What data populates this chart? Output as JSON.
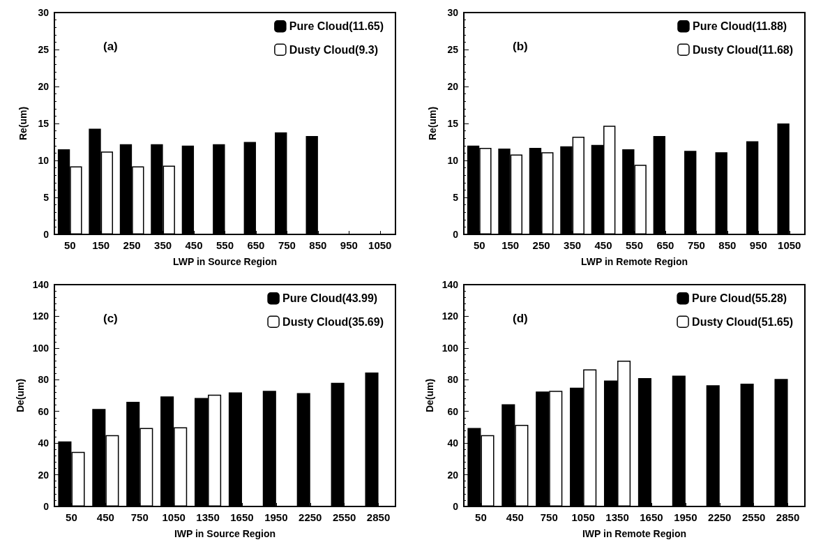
{
  "chart_data": [
    {
      "type": "bar",
      "annotations": [
        "(a)"
      ],
      "xlabel": "LWP in Source Region",
      "ylabel": "Re(um)",
      "categories": [
        "50",
        "150",
        "250",
        "350",
        "450",
        "550",
        "650",
        "750",
        "850",
        "950",
        "1050"
      ],
      "series": [
        {
          "name": "Pure Cloud(11.65)",
          "color": "#000000",
          "values": [
            11.5,
            14.3,
            12.2,
            12.2,
            12.0,
            12.2,
            12.5,
            13.8,
            13.3,
            null,
            null
          ]
        },
        {
          "name": "Dusty Cloud(9.3)",
          "color": "#ffffff",
          "values": [
            9.2,
            11.2,
            9.2,
            9.3,
            null,
            null,
            null,
            null,
            null,
            null,
            null
          ]
        }
      ],
      "ylim": [
        0,
        30
      ],
      "yticks": [
        0,
        5,
        10,
        15,
        20,
        25,
        30
      ],
      "grid": false,
      "legend": "top right"
    },
    {
      "type": "bar",
      "annotations": [
        "(b)"
      ],
      "xlabel": "LWP in Remote Region",
      "ylabel": "Re(um)",
      "categories": [
        "50",
        "150",
        "250",
        "350",
        "450",
        "550",
        "650",
        "750",
        "850",
        "950",
        "1050"
      ],
      "series": [
        {
          "name": "Pure Cloud(11.88)",
          "color": "#000000",
          "values": [
            12.0,
            11.6,
            11.7,
            11.9,
            12.1,
            11.5,
            13.3,
            11.3,
            11.1,
            12.6,
            15.0
          ]
        },
        {
          "name": "Dusty Cloud(11.68)",
          "color": "#ffffff",
          "values": [
            11.7,
            10.8,
            11.1,
            13.2,
            14.7,
            9.4,
            null,
            null,
            null,
            null,
            null
          ]
        }
      ],
      "ylim": [
        0,
        30
      ],
      "yticks": [
        0,
        5,
        10,
        15,
        20,
        25,
        30
      ],
      "grid": false,
      "legend": "top right"
    },
    {
      "type": "bar",
      "annotations": [
        "(c)"
      ],
      "xlabel": "IWP in Source Region",
      "ylabel": "De(um)",
      "categories": [
        "50",
        "450",
        "750",
        "1050",
        "1350",
        "1650",
        "1950",
        "2250",
        "2550",
        "2850"
      ],
      "series": [
        {
          "name": "Pure Cloud(43.99)",
          "color": "#000000",
          "values": [
            41,
            61.5,
            66,
            69.5,
            68.5,
            72,
            73,
            71.5,
            78,
            84.5
          ]
        },
        {
          "name": "Dusty Cloud(35.69)",
          "color": "#ffffff",
          "values": [
            34.5,
            45,
            49.5,
            50,
            70.5,
            null,
            null,
            null,
            null,
            null
          ]
        }
      ],
      "ylim": [
        0,
        140
      ],
      "yticks": [
        0,
        20,
        40,
        60,
        80,
        100,
        120,
        140
      ],
      "grid": false,
      "legend": "top right"
    },
    {
      "type": "bar",
      "annotations": [
        "(d)"
      ],
      "xlabel": "IWP in Remote Region",
      "ylabel": "De(um)",
      "categories": [
        "50",
        "450",
        "750",
        "1050",
        "1350",
        "1650",
        "1950",
        "2250",
        "2550",
        "2850"
      ],
      "series": [
        {
          "name": "Pure Cloud(55.28)",
          "color": "#000000",
          "values": [
            49.5,
            64.5,
            72.5,
            75,
            79.5,
            81,
            82.5,
            76.5,
            77.5,
            80.5
          ]
        },
        {
          "name": "Dusty Cloud(51.65)",
          "color": "#ffffff",
          "values": [
            45,
            51.5,
            73,
            86.5,
            92,
            null,
            null,
            null,
            null,
            null
          ]
        }
      ],
      "ylim": [
        0,
        140
      ],
      "yticks": [
        0,
        20,
        40,
        60,
        80,
        100,
        120,
        140
      ],
      "grid": false,
      "legend": "top right"
    }
  ]
}
